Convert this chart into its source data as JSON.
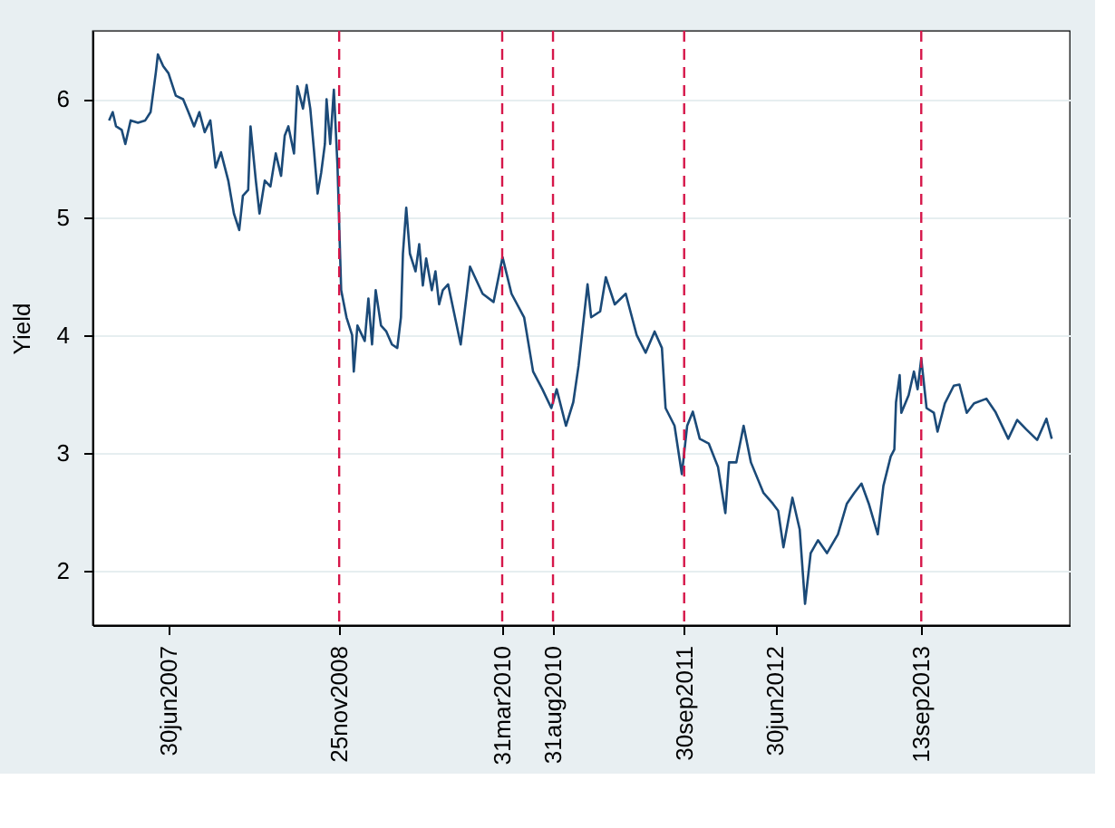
{
  "chart_data": {
    "type": "line",
    "ylabel": "Yield",
    "x": [
      "2007-01-02",
      "2007-01-13",
      "2007-01-23",
      "2007-02-09",
      "2007-02-20",
      "2007-03-08",
      "2007-03-30",
      "2007-04-21",
      "2007-05-07",
      "2007-05-23",
      "2007-05-29",
      "2007-06-14",
      "2007-06-30",
      "2007-07-22",
      "2007-08-13",
      "2007-08-29",
      "2007-09-15",
      "2007-10-01",
      "2007-10-17",
      "2007-11-03",
      "2007-11-19",
      "2007-12-05",
      "2007-12-27",
      "2008-01-13",
      "2008-01-29",
      "2008-02-09",
      "2008-02-25",
      "2008-03-03",
      "2008-03-19",
      "2008-03-30",
      "2008-04-15",
      "2008-05-02",
      "2008-05-18",
      "2008-06-03",
      "2008-06-14",
      "2008-06-25",
      "2008-07-12",
      "2008-07-22",
      "2008-08-08",
      "2008-08-19",
      "2008-08-30",
      "2008-09-10",
      "2008-09-21",
      "2008-10-02",
      "2008-10-13",
      "2008-10-18",
      "2008-10-29",
      "2008-11-09",
      "2008-11-20",
      "2008-11-26",
      "2008-12-01",
      "2008-12-17",
      "2009-01-03",
      "2009-01-08",
      "2009-01-19",
      "2009-02-10",
      "2009-02-21",
      "2009-03-04",
      "2009-03-15",
      "2009-03-31",
      "2009-04-16",
      "2009-05-03",
      "2009-05-19",
      "2009-05-30",
      "2009-06-05",
      "2009-06-15",
      "2009-06-26",
      "2009-07-13",
      "2009-07-24",
      "2009-08-04",
      "2009-08-14",
      "2009-08-31",
      "2009-09-11",
      "2009-09-22",
      "2009-10-03",
      "2009-10-19",
      "2009-11-26",
      "2009-12-24",
      "2010-01-31",
      "2010-03-05",
      "2010-04-01",
      "2010-04-28",
      "2010-06-05",
      "2010-07-02",
      "2010-07-30",
      "2010-08-26",
      "2010-09-11",
      "2010-10-09",
      "2010-10-31",
      "2010-11-16",
      "2010-12-13",
      "2010-12-24",
      "2011-01-20",
      "2011-02-06",
      "2011-03-05",
      "2011-04-07",
      "2011-05-10",
      "2011-06-06",
      "2011-07-03",
      "2011-07-25",
      "2011-08-05",
      "2011-09-01",
      "2011-09-23",
      "2011-10-09",
      "2011-10-26",
      "2011-11-16",
      "2011-12-13",
      "2012-01-10",
      "2012-02-01",
      "2012-02-12",
      "2012-03-05",
      "2012-03-27",
      "2012-04-18",
      "2012-05-26",
      "2012-06-23",
      "2012-07-09",
      "2012-07-25",
      "2012-08-21",
      "2012-09-12",
      "2012-09-28",
      "2012-10-15",
      "2012-11-06",
      "2012-12-03",
      "2013-01-05",
      "2013-02-01",
      "2013-02-23",
      "2013-03-17",
      "2013-04-08",
      "2013-05-05",
      "2013-05-22",
      "2013-06-13",
      "2013-06-24",
      "2013-06-29",
      "2013-07-10",
      "2013-07-15",
      "2013-08-06",
      "2013-08-22",
      "2013-09-02",
      "2013-09-13",
      "2013-09-29",
      "2013-10-21",
      "2013-11-01",
      "2013-11-23",
      "2013-12-20",
      "2014-01-06",
      "2014-01-28",
      "2014-02-19",
      "2014-03-28",
      "2014-04-24",
      "2014-06-02",
      "2014-06-29",
      "2014-07-26",
      "2014-08-28",
      "2014-09-25",
      "2014-10-11"
    ],
    "series": [
      {
        "color": "#1b4a78",
        "values": [
          5.82,
          5.89,
          5.77,
          5.74,
          5.62,
          5.82,
          5.8,
          5.82,
          5.89,
          6.23,
          6.38,
          6.28,
          6.22,
          6.03,
          6.0,
          5.89,
          5.77,
          5.89,
          5.72,
          5.82,
          5.42,
          5.55,
          5.31,
          5.03,
          4.89,
          5.18,
          5.23,
          5.77,
          5.31,
          5.03,
          5.31,
          5.26,
          5.54,
          5.35,
          5.69,
          5.77,
          5.54,
          6.11,
          5.92,
          6.12,
          5.92,
          5.57,
          5.2,
          5.38,
          5.62,
          6.0,
          5.62,
          6.08,
          5.43,
          4.85,
          4.38,
          4.15,
          4.0,
          3.69,
          4.08,
          3.95,
          4.31,
          3.92,
          4.38,
          4.08,
          4.03,
          3.92,
          3.89,
          4.15,
          4.69,
          5.08,
          4.69,
          4.54,
          4.77,
          4.42,
          4.65,
          4.38,
          4.54,
          4.26,
          4.38,
          4.43,
          3.92,
          4.58,
          4.35,
          4.28,
          4.66,
          4.35,
          4.15,
          3.69,
          3.54,
          3.38,
          3.54,
          3.23,
          3.43,
          3.74,
          4.43,
          4.15,
          4.2,
          4.49,
          4.26,
          4.35,
          4.0,
          3.85,
          4.03,
          3.89,
          3.38,
          3.23,
          2.82,
          3.23,
          3.35,
          3.12,
          3.08,
          2.88,
          2.49,
          2.92,
          2.92,
          3.23,
          2.92,
          2.66,
          2.57,
          2.51,
          2.2,
          2.62,
          2.35,
          1.72,
          2.15,
          2.26,
          2.15,
          2.31,
          2.57,
          2.66,
          2.74,
          2.57,
          2.31,
          2.72,
          2.97,
          3.03,
          3.43,
          3.66,
          3.34,
          3.49,
          3.69,
          3.54,
          3.8,
          3.38,
          3.34,
          3.18,
          3.42,
          3.57,
          3.58,
          3.34,
          3.42,
          3.46,
          3.35,
          3.12,
          3.28,
          3.2,
          3.11,
          3.29,
          3.12
        ]
      }
    ],
    "xlim": [
      "2006-11-13",
      "2014-12-04"
    ],
    "xticks": [
      {
        "value": "2007-06-30",
        "label": "30jun2007"
      },
      {
        "value": "2008-11-25",
        "label": "25nov2008"
      },
      {
        "value": "2010-03-31",
        "label": "31mar2010"
      },
      {
        "value": "2010-08-31",
        "label": "31aug2010"
      },
      {
        "value": "2011-09-30",
        "label": "30sep2011"
      },
      {
        "value": "2012-06-30",
        "label": "30jun2012"
      },
      {
        "value": "2013-09-13",
        "label": "13sep2013"
      }
    ],
    "ylim": [
      1.54,
      6.58
    ],
    "yticks": [
      2,
      3,
      4,
      5,
      6
    ],
    "ref_lines": [
      {
        "axis": "x",
        "value": "2008-11-25",
        "color": "#d6174a",
        "line_style": "dashed"
      },
      {
        "axis": "x",
        "value": "2010-03-31",
        "color": "#d6174a",
        "line_style": "dashed"
      },
      {
        "axis": "x",
        "value": "2010-08-31",
        "color": "#d6174a",
        "line_style": "dashed"
      },
      {
        "axis": "x",
        "value": "2011-09-30",
        "color": "#d6174a",
        "line_style": "dashed"
      },
      {
        "axis": "x",
        "value": "2013-09-13",
        "color": "#d6174a",
        "line_style": "dashed"
      }
    ],
    "grid": "y",
    "line_style": "solid"
  }
}
